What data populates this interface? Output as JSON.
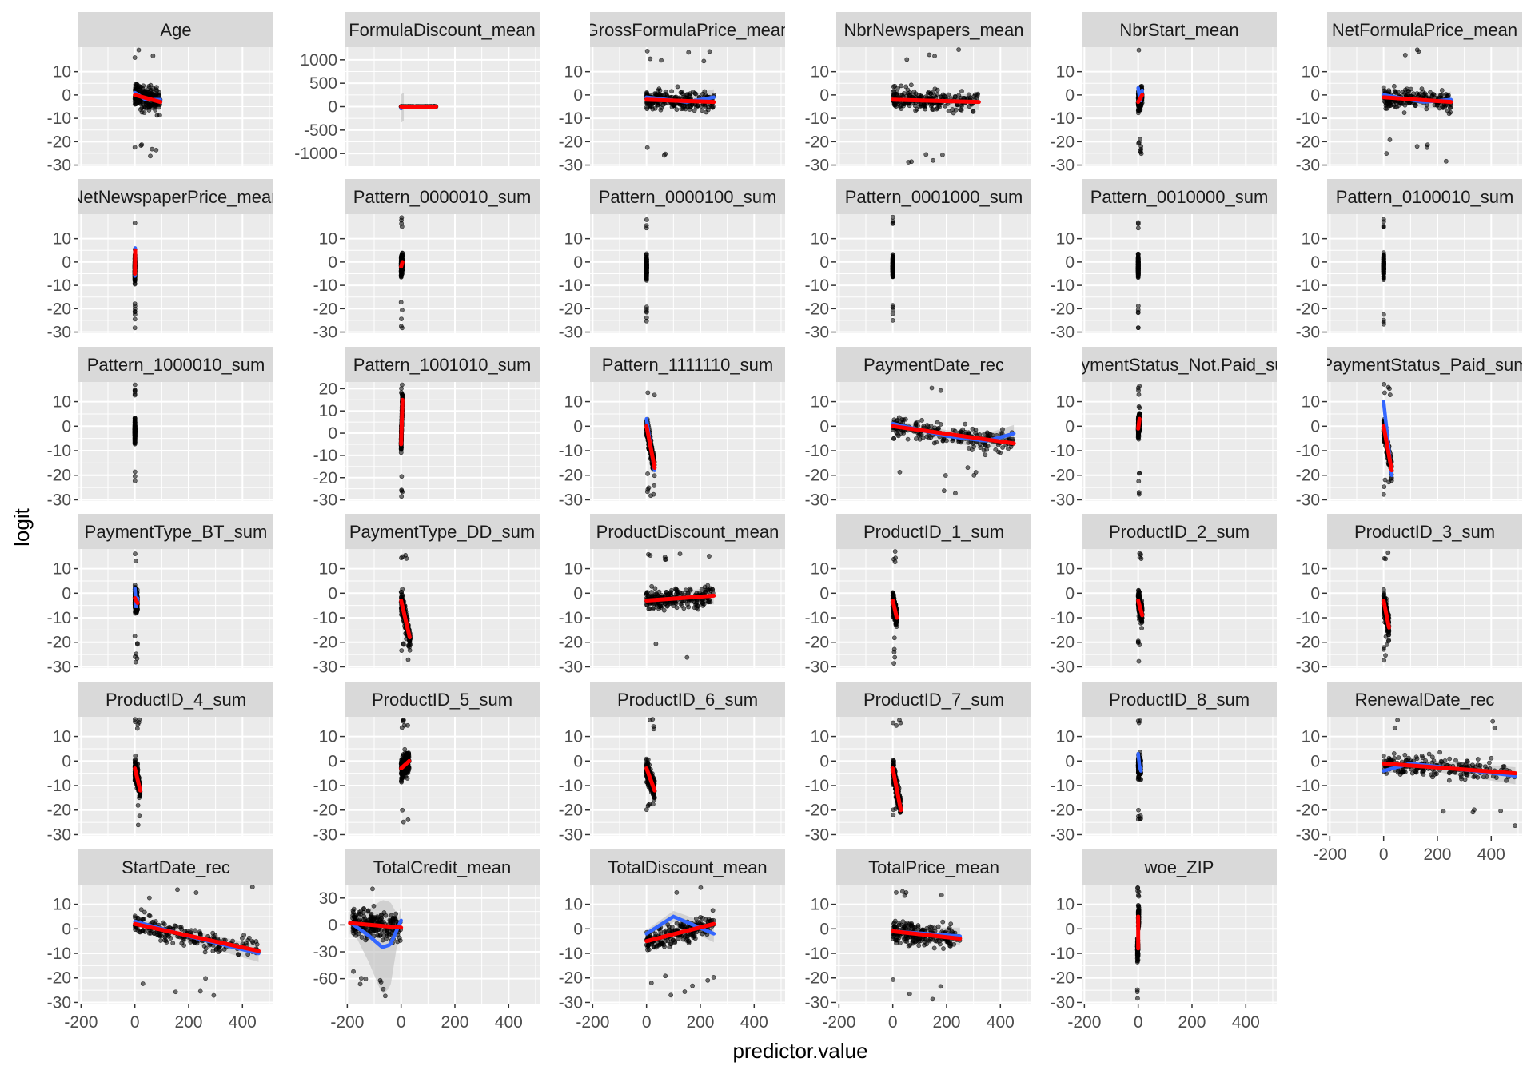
{
  "chart_data": {
    "type": "scatter",
    "layout": "facet-grid 6x6, free y scales",
    "xlabel": "predictor.value",
    "ylabel": "logit",
    "xlim": [
      -210,
      515
    ],
    "x_ticks": [
      -200,
      0,
      200,
      400
    ],
    "colors": {
      "panel_bg": "#EBEBEB",
      "strip_bg": "#D9D9D9",
      "grid": "#FFFFFF",
      "points": "#000000",
      "loess": "#3366FF",
      "linear": "#FF0000",
      "ribbon": "#BEBEBE"
    },
    "grid": true,
    "panels": [
      {
        "title": "Age",
        "yticks": [
          10,
          0,
          -10,
          -20,
          -30
        ],
        "ylim": [
          -30.5,
          20.5
        ],
        "x_span": [
          0,
          95
        ],
        "linear": [
          [
            0,
            0
          ],
          [
            95,
            -3
          ]
        ],
        "loess": [
          [
            0,
            1
          ],
          [
            40,
            -2
          ],
          [
            95,
            -2
          ]
        ]
      },
      {
        "title": "FormulaDiscount_mean",
        "yticks": [
          1000,
          500,
          0,
          -500,
          -1000
        ],
        "ylim": [
          -1270,
          1270
        ],
        "x_span": [
          0,
          130
        ],
        "y_scale": 1,
        "linear": [
          [
            0,
            0
          ],
          [
            130,
            0
          ]
        ],
        "loess": [
          [
            0,
            -40
          ],
          [
            10,
            0
          ]
        ]
      },
      {
        "title": "GrossFormulaPrice_mean",
        "yticks": [
          10,
          0,
          -10,
          -20,
          -30
        ],
        "ylim": [
          -30.5,
          20.5
        ],
        "x_span": [
          0,
          250
        ],
        "linear": [
          [
            0,
            -2
          ],
          [
            250,
            -3
          ]
        ],
        "loess": [
          [
            0,
            -1
          ],
          [
            150,
            -3
          ],
          [
            250,
            -1
          ]
        ]
      },
      {
        "title": "NbrNewspapers_mean",
        "yticks": [
          10,
          0,
          -10,
          -20,
          -30
        ],
        "ylim": [
          -30.5,
          20.5
        ],
        "x_span": [
          0,
          320
        ],
        "linear": [
          [
            0,
            -2
          ],
          [
            320,
            -3
          ]
        ],
        "loess": [
          [
            0,
            -2
          ],
          [
            320,
            -3
          ]
        ]
      },
      {
        "title": "NbrStart_mean",
        "yticks": [
          10,
          0,
          -10,
          -20,
          -30
        ],
        "ylim": [
          -30.5,
          20.5
        ],
        "x_span": [
          0,
          15
        ],
        "linear": [
          [
            0,
            -3
          ],
          [
            15,
            0
          ]
        ],
        "loess": [
          [
            0,
            3
          ],
          [
            8,
            -3
          ],
          [
            15,
            2
          ]
        ]
      },
      {
        "title": "NetFormulaPrice_mean",
        "yticks": [
          10,
          0,
          -10,
          -20,
          -30
        ],
        "ylim": [
          -30.5,
          20.5
        ],
        "x_span": [
          0,
          250
        ],
        "linear": [
          [
            0,
            -1
          ],
          [
            250,
            -3
          ]
        ],
        "loess": [
          [
            0,
            0
          ],
          [
            150,
            -3
          ],
          [
            250,
            -2
          ]
        ]
      },
      {
        "title": "NetNewspaperPrice_mean",
        "yticks": [
          10,
          0,
          -10,
          -20,
          -30
        ],
        "ylim": [
          -30.5,
          20.5
        ],
        "x_span": [
          0,
          1
        ],
        "linear": [
          [
            0,
            -5
          ],
          [
            1,
            5
          ]
        ],
        "loess": [
          [
            0,
            -6
          ],
          [
            1,
            6
          ]
        ]
      },
      {
        "title": "Pattern_0000010_sum",
        "yticks": [
          10,
          0,
          -10,
          -20,
          -30
        ],
        "ylim": [
          -30.5,
          20.5
        ],
        "x_span": [
          0,
          5
        ],
        "linear": [
          [
            0,
            -2
          ],
          [
            5,
            0
          ]
        ],
        "loess": []
      },
      {
        "title": "Pattern_0000100_sum",
        "yticks": [
          10,
          0,
          -10,
          -20,
          -30
        ],
        "ylim": [
          -30.5,
          20.5
        ],
        "x_span": [
          0,
          1
        ],
        "linear": [],
        "loess": []
      },
      {
        "title": "Pattern_0001000_sum",
        "yticks": [
          10,
          0,
          -10,
          -20,
          -30
        ],
        "ylim": [
          -30.5,
          20.5
        ],
        "x_span": [
          0,
          1
        ],
        "linear": [],
        "loess": []
      },
      {
        "title": "Pattern_0010000_sum",
        "yticks": [
          10,
          0,
          -10,
          -20,
          -30
        ],
        "ylim": [
          -30.5,
          20.5
        ],
        "x_span": [
          0,
          1
        ],
        "linear": [],
        "loess": []
      },
      {
        "title": "Pattern_0100010_sum",
        "yticks": [
          10,
          0,
          -10,
          -20,
          -30
        ],
        "ylim": [
          -30.5,
          20.5
        ],
        "x_span": [
          0,
          1
        ],
        "linear": [],
        "loess": []
      },
      {
        "title": "Pattern_1000010_sum",
        "yticks": [
          10,
          0,
          -10,
          -20,
          -30
        ],
        "ylim": [
          -30.5,
          18
        ],
        "x_span": [
          0,
          1
        ],
        "linear": [],
        "loess": []
      },
      {
        "title": "Pattern_1001010_sum",
        "yticks": [
          20,
          10,
          0,
          -10,
          -20,
          -30
        ],
        "ylim": [
          -30.5,
          23
        ],
        "x_span": [
          0,
          5
        ],
        "linear": [
          [
            0,
            -5
          ],
          [
            5,
            15
          ]
        ],
        "loess": []
      },
      {
        "title": "Pattern_1111110_sum",
        "yticks": [
          10,
          0,
          -10,
          -20,
          -30
        ],
        "ylim": [
          -30.5,
          18
        ],
        "x_span": [
          0,
          30
        ],
        "linear": [
          [
            0,
            0
          ],
          [
            30,
            -17
          ]
        ],
        "loess": [
          [
            0,
            3
          ],
          [
            15,
            -8
          ],
          [
            30,
            -18
          ]
        ]
      },
      {
        "title": "PaymentDate_rec",
        "yticks": [
          10,
          0,
          -10,
          -20,
          -30
        ],
        "ylim": [
          -30.5,
          18
        ],
        "x_span": [
          0,
          450
        ],
        "linear": [
          [
            0,
            0
          ],
          [
            450,
            -7
          ]
        ],
        "loess": [
          [
            0,
            1
          ],
          [
            200,
            -4
          ],
          [
            350,
            -6
          ],
          [
            450,
            -3
          ]
        ]
      },
      {
        "title": "PaymentStatus_Not.Paid_sum",
        "yticks": [
          10,
          0,
          -10,
          -20,
          -30
        ],
        "ylim": [
          -30.5,
          18
        ],
        "x_span": [
          0,
          5
        ],
        "linear": [
          [
            0,
            -1
          ],
          [
            5,
            3
          ]
        ],
        "loess": []
      },
      {
        "title": "PaymentStatus_Paid_sum",
        "yticks": [
          10,
          0,
          -10,
          -20,
          -30
        ],
        "ylim": [
          -30.5,
          18
        ],
        "x_span": [
          0,
          30
        ],
        "linear": [
          [
            0,
            0
          ],
          [
            30,
            -18
          ]
        ],
        "loess": [
          [
            0,
            10
          ],
          [
            10,
            0
          ],
          [
            30,
            -20
          ]
        ]
      },
      {
        "title": "PaymentType_BT_sum",
        "yticks": [
          10,
          0,
          -10,
          -20,
          -30
        ],
        "ylim": [
          -30.5,
          18
        ],
        "x_span": [
          0,
          10
        ],
        "linear": [
          [
            0,
            -2
          ],
          [
            10,
            -4
          ]
        ],
        "loess": [
          [
            0,
            2
          ],
          [
            5,
            -6
          ],
          [
            10,
            -2
          ]
        ]
      },
      {
        "title": "PaymentType_DD_sum",
        "yticks": [
          10,
          0,
          -10,
          -20,
          -30
        ],
        "ylim": [
          -30.5,
          18
        ],
        "x_span": [
          0,
          35
        ],
        "linear": [
          [
            0,
            -3
          ],
          [
            32,
            -18
          ]
        ],
        "loess": [
          [
            0,
            -3
          ],
          [
            32,
            -18
          ]
        ]
      },
      {
        "title": "ProductDiscount_mean",
        "yticks": [
          10,
          0,
          -10,
          -20,
          -30
        ],
        "ylim": [
          -30.5,
          18
        ],
        "x_span": [
          0,
          250
        ],
        "linear": [
          [
            0,
            -3
          ],
          [
            250,
            -1
          ]
        ],
        "loess": [
          [
            0,
            -3
          ],
          [
            250,
            -1
          ]
        ]
      },
      {
        "title": "ProductID_1_sum",
        "yticks": [
          10,
          0,
          -10,
          -20,
          -30
        ],
        "ylim": [
          -30.5,
          18
        ],
        "x_span": [
          0,
          15
        ],
        "linear": [
          [
            0,
            -3
          ],
          [
            15,
            -10
          ]
        ],
        "loess": []
      },
      {
        "title": "ProductID_2_sum",
        "yticks": [
          10,
          0,
          -10,
          -20,
          -30
        ],
        "ylim": [
          -30.5,
          18
        ],
        "x_span": [
          0,
          15
        ],
        "linear": [
          [
            0,
            -3
          ],
          [
            15,
            -9
          ]
        ],
        "loess": []
      },
      {
        "title": "ProductID_3_sum",
        "yticks": [
          10,
          0,
          -10,
          -20,
          -30
        ],
        "ylim": [
          -30.5,
          18
        ],
        "x_span": [
          0,
          20
        ],
        "linear": [
          [
            0,
            -3
          ],
          [
            20,
            -14
          ]
        ],
        "loess": []
      },
      {
        "title": "ProductID_4_sum",
        "yticks": [
          10,
          0,
          -10,
          -20,
          -30
        ],
        "ylim": [
          -30.5,
          18
        ],
        "x_span": [
          0,
          20
        ],
        "linear": [
          [
            0,
            -3
          ],
          [
            20,
            -12
          ]
        ],
        "loess": []
      },
      {
        "title": "ProductID_5_sum",
        "yticks": [
          10,
          0,
          -10,
          -20,
          -30
        ],
        "ylim": [
          -30.5,
          18
        ],
        "x_span": [
          0,
          30
        ],
        "linear": [
          [
            0,
            -3
          ],
          [
            30,
            0
          ]
        ],
        "loess": []
      },
      {
        "title": "ProductID_6_sum",
        "yticks": [
          10,
          0,
          -10,
          -20,
          -30
        ],
        "ylim": [
          -30.5,
          18
        ],
        "x_span": [
          0,
          30
        ],
        "linear": [
          [
            0,
            -3
          ],
          [
            30,
            -12
          ]
        ],
        "loess": []
      },
      {
        "title": "ProductID_7_sum",
        "yticks": [
          10,
          0,
          -10,
          -20,
          -30
        ],
        "ylim": [
          -30.5,
          18
        ],
        "x_span": [
          0,
          30
        ],
        "linear": [
          [
            0,
            -3
          ],
          [
            30,
            -20
          ]
        ],
        "loess": []
      },
      {
        "title": "ProductID_8_sum",
        "yticks": [
          10,
          0,
          -10,
          -20,
          -30
        ],
        "ylim": [
          -30.5,
          18
        ],
        "x_span": [
          0,
          10
        ],
        "linear": [],
        "loess": [
          [
            0,
            3
          ],
          [
            5,
            -2
          ],
          [
            10,
            -4
          ]
        ]
      },
      {
        "title": "RenewalDate_rec",
        "yticks": [
          10,
          0,
          -10,
          -20,
          -30
        ],
        "ylim": [
          -30.5,
          18
        ],
        "x_span": [
          0,
          490
        ],
        "linear": [
          [
            0,
            -1
          ],
          [
            490,
            -5
          ]
        ],
        "loess": [
          [
            0,
            -4
          ],
          [
            100,
            -1
          ],
          [
            490,
            -6
          ]
        ],
        "show_x_axis": true
      },
      {
        "title": "StartDate_rec",
        "yticks": [
          10,
          0,
          -10,
          -20,
          -30
        ],
        "ylim": [
          -30.5,
          18
        ],
        "x_span": [
          0,
          460
        ],
        "linear": [
          [
            0,
            2
          ],
          [
            460,
            -9
          ]
        ],
        "loess": [
          [
            0,
            3
          ],
          [
            200,
            -3
          ],
          [
            460,
            -10
          ]
        ]
      },
      {
        "title": "TotalCredit_mean",
        "yticks": [
          30,
          0,
          -30,
          -60
        ],
        "ylim": [
          -88,
          45
        ],
        "x_span": [
          -180,
          0
        ],
        "linear": [
          [
            -190,
            2
          ],
          [
            0,
            -3
          ]
        ],
        "loess": [
          [
            -190,
            3
          ],
          [
            -120,
            -12
          ],
          [
            -70,
            -25
          ],
          [
            -40,
            -22
          ],
          [
            0,
            5
          ]
        ]
      },
      {
        "title": "TotalDiscount_mean",
        "yticks": [
          10,
          0,
          -10,
          -20,
          -30
        ],
        "ylim": [
          -30.5,
          18
        ],
        "x_span": [
          0,
          250
        ],
        "linear": [
          [
            0,
            -5
          ],
          [
            250,
            2
          ]
        ],
        "loess": [
          [
            0,
            -2
          ],
          [
            100,
            5
          ],
          [
            250,
            -2
          ]
        ]
      },
      {
        "title": "TotalPrice_mean",
        "yticks": [
          10,
          0,
          -10,
          -20,
          -30
        ],
        "ylim": [
          -30.5,
          18
        ],
        "x_span": [
          0,
          250
        ],
        "linear": [
          [
            0,
            -1
          ],
          [
            250,
            -4
          ]
        ],
        "loess": [
          [
            0,
            -1
          ],
          [
            250,
            -3
          ]
        ]
      },
      {
        "title": "woe_ZIP",
        "yticks": [
          10,
          0,
          -10,
          -20,
          -30
        ],
        "ylim": [
          -30.5,
          18
        ],
        "x_span": [
          -3,
          3
        ],
        "linear": [
          [
            0,
            -8
          ],
          [
            0,
            5
          ]
        ],
        "loess": []
      }
    ]
  }
}
